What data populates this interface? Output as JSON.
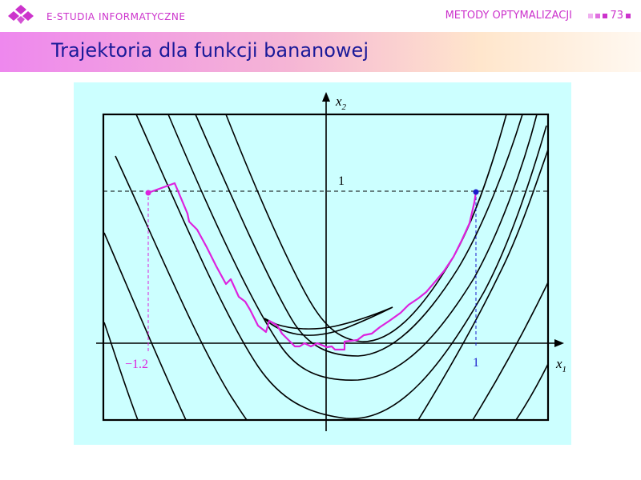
{
  "header": {
    "brand": "E-STUDIA INFORMATYCZNE",
    "course": "METODY OPTYMALIZACJI",
    "page_number": "73",
    "accent_color": "#cc33cc"
  },
  "slide": {
    "title": "Trajektoria dla funkcji bananowej"
  },
  "figure": {
    "axis_x_label": "x",
    "axis_x_sub": "1",
    "axis_y_label": "x",
    "axis_y_sub": "2",
    "level_y_label": "1",
    "start_x_label": "−1.2",
    "end_x_label": "1",
    "trajectory_color": "#dd22dd",
    "end_point_color": "#1a1acc",
    "panel_color": "#ccffff"
  }
}
